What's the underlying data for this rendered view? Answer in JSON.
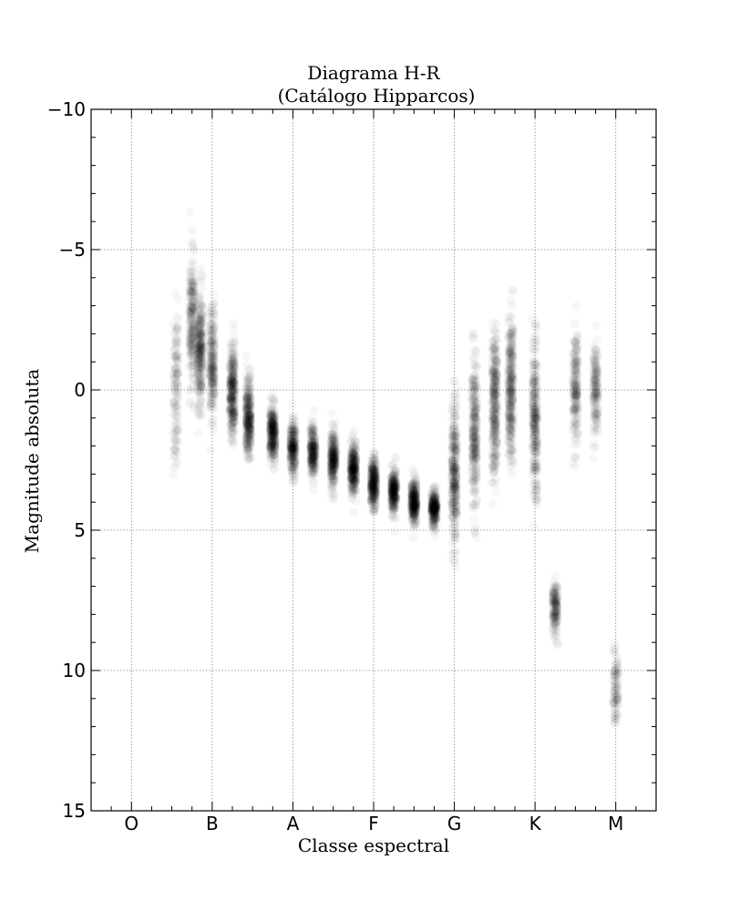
{
  "chart_data": {
    "type": "scatter",
    "title": "Diagrama H-R",
    "subtitle": "(Catálogo Hipparcos)",
    "xlabel": "Classe espectral",
    "ylabel": "Magnitude absoluta",
    "x_categories": [
      "O",
      "B",
      "A",
      "F",
      "G",
      "K",
      "M"
    ],
    "xlim": [
      -0.5,
      6.5
    ],
    "ylim": [
      15,
      -10
    ],
    "y_ticks": [
      -10,
      -5,
      0,
      5,
      10,
      15
    ],
    "y_tick_labels": [
      "−10",
      "−5",
      "0",
      "5",
      "10",
      "15"
    ],
    "y_inverted": true,
    "grid": true,
    "marker_color": "#000000",
    "marker_alpha": 0.03,
    "density_profile": [
      {
        "x": 0.55,
        "center": 0.0,
        "spread": 2.6,
        "weight": 0.4
      },
      {
        "x": 0.75,
        "center": -2.5,
        "spread": 2.0,
        "weight": 0.7
      },
      {
        "x": 0.85,
        "center": -1.5,
        "spread": 1.8,
        "weight": 0.9
      },
      {
        "x": 1.0,
        "center": -1.0,
        "spread": 1.8,
        "weight": 0.7
      },
      {
        "x": 1.25,
        "center": 0.0,
        "spread": 1.5,
        "weight": 1.0
      },
      {
        "x": 1.45,
        "center": 1.0,
        "spread": 1.2,
        "weight": 1.0
      },
      {
        "x": 1.75,
        "center": 1.5,
        "spread": 0.9,
        "weight": 1.0
      },
      {
        "x": 2.0,
        "center": 2.0,
        "spread": 0.9,
        "weight": 0.8
      },
      {
        "x": 2.25,
        "center": 2.2,
        "spread": 0.8,
        "weight": 0.8
      },
      {
        "x": 2.5,
        "center": 2.5,
        "spread": 0.9,
        "weight": 0.9
      },
      {
        "x": 2.75,
        "center": 2.8,
        "spread": 0.8,
        "weight": 1.0
      },
      {
        "x": 3.0,
        "center": 3.3,
        "spread": 0.8,
        "weight": 1.0
      },
      {
        "x": 3.25,
        "center": 3.6,
        "spread": 0.7,
        "weight": 0.9
      },
      {
        "x": 3.5,
        "center": 4.0,
        "spread": 0.7,
        "weight": 1.0
      },
      {
        "x": 3.75,
        "center": 4.2,
        "spread": 0.6,
        "weight": 0.9
      },
      {
        "x": 4.0,
        "center": 3.0,
        "spread": 2.2,
        "weight": 1.0
      },
      {
        "x": 4.25,
        "center": 1.5,
        "spread": 2.5,
        "weight": 0.9
      },
      {
        "x": 4.5,
        "center": 0.5,
        "spread": 2.3,
        "weight": 1.0
      },
      {
        "x": 4.7,
        "center": 0.0,
        "spread": 2.2,
        "weight": 1.0
      },
      {
        "x": 5.0,
        "center": 1.0,
        "spread": 2.5,
        "weight": 0.9
      },
      {
        "x": 5.25,
        "center": 7.8,
        "spread": 0.9,
        "weight": 0.5
      },
      {
        "x": 5.5,
        "center": 0.0,
        "spread": 2.0,
        "weight": 0.6
      },
      {
        "x": 5.75,
        "center": 0.0,
        "spread": 1.5,
        "weight": 0.5
      },
      {
        "x": 6.0,
        "center": 10.5,
        "spread": 1.2,
        "weight": 0.3
      }
    ]
  }
}
